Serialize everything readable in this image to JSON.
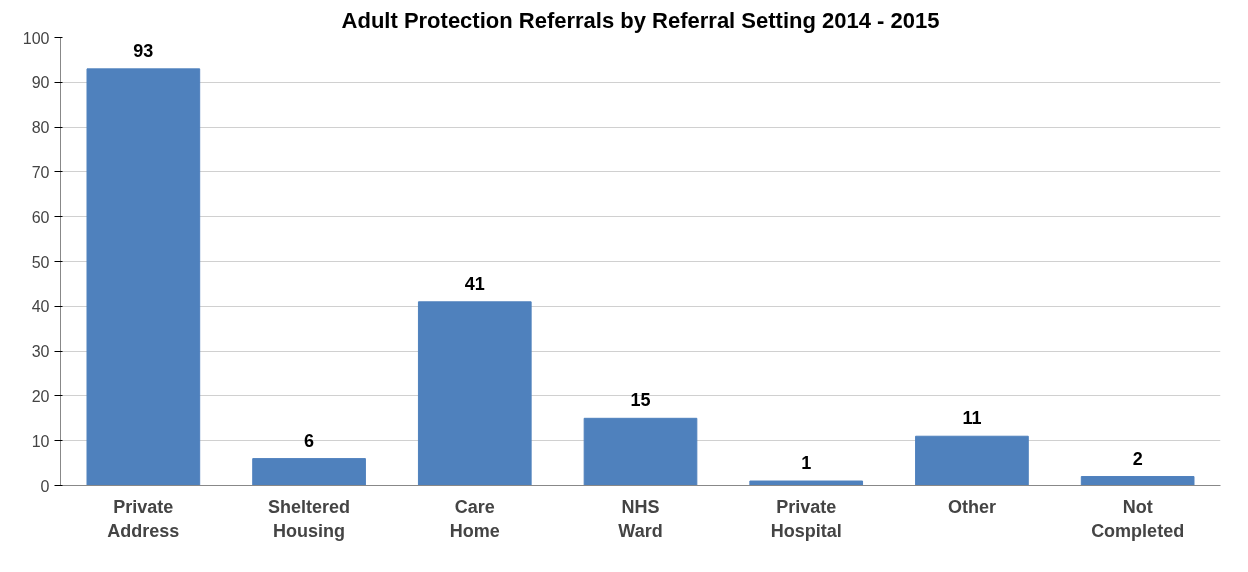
{
  "chart_data": {
    "type": "bar",
    "title": "Adult Protection Referrals by Referral Setting 2014 - 2015",
    "categories": [
      "Private Address",
      "Sheltered Housing",
      "Care Home",
      "NHS Ward",
      "Private Hospital",
      "Other",
      "Not Completed"
    ],
    "values": [
      93,
      6,
      41,
      15,
      1,
      11,
      2
    ],
    "color": "#4f81bd",
    "ylim": [
      0,
      100
    ],
    "yticks": [
      0,
      10,
      20,
      30,
      40,
      50,
      60,
      70,
      80,
      90,
      100
    ],
    "grid": "y",
    "data_labels": true
  }
}
